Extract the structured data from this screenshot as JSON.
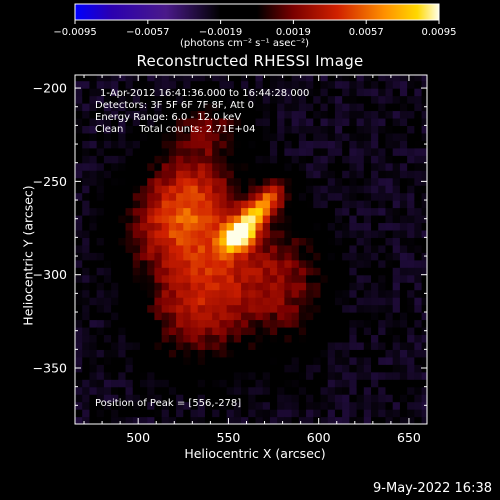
{
  "chart_data": {
    "type": "heatmap",
    "title": "Reconstructed RHESSI Image",
    "xlabel": "Heliocentric X (arcsec)",
    "ylabel": "Heliocentric Y (arcsec)",
    "xlim": [
      465,
      660
    ],
    "ylim": [
      -380,
      -193
    ],
    "x_ticks": [
      500,
      550,
      600,
      650
    ],
    "y_ticks": [
      -200,
      -250,
      -300,
      -350
    ],
    "annotations": [
      "1-Apr-2012 16:41:36.000 to 16:44:28.000",
      "Detectors: 3F 5F 6F 7F 8F, Att 0",
      "Energy Range: 6.0 - 12.0 keV",
      "Clean     Total counts: 2.71E+04"
    ],
    "peak_label": "Position of Peak = [556,-278]",
    "peak": {
      "x": 556,
      "y": -278
    },
    "colorbar": {
      "ticks": [
        "-0.0095",
        "-0.0057",
        "-0.0019",
        "0.0019",
        "0.0057",
        "0.0095"
      ],
      "min": -0.0095,
      "max": 0.0095,
      "units_label": "(photons cm⁻² s⁻¹ asec⁻²)"
    },
    "sources": [
      {
        "x": 556,
        "y": -278,
        "amp": 0.0095,
        "sx": 8,
        "sy": 5,
        "angle": 40
      },
      {
        "x": 570,
        "y": -262,
        "amp": 0.0075,
        "sx": 10,
        "sy": 5,
        "angle": 45
      },
      {
        "x": 530,
        "y": -258,
        "amp": 0.0052,
        "sx": 18,
        "sy": 22,
        "angle": 0
      },
      {
        "x": 550,
        "y": -300,
        "amp": 0.0045,
        "sx": 22,
        "sy": 28,
        "angle": 0
      },
      {
        "x": 525,
        "y": -320,
        "amp": 0.0032,
        "sx": 18,
        "sy": 20,
        "angle": 0
      },
      {
        "x": 510,
        "y": -275,
        "amp": 0.003,
        "sx": 18,
        "sy": 18,
        "angle": 0
      },
      {
        "x": 585,
        "y": -305,
        "amp": 0.0032,
        "sx": 15,
        "sy": 22,
        "angle": 0
      },
      {
        "x": 540,
        "y": -220,
        "amp": 0.0028,
        "sx": 14,
        "sy": 10,
        "angle": 0
      }
    ],
    "background": -0.0023,
    "colors": {
      "background": "#000000",
      "text": "#ffffff",
      "colormap": [
        "#0000ff",
        "#2b00b0",
        "#4a1a8a",
        "#5a2a80",
        "#000000",
        "#5a0012",
        "#a00000",
        "#e03000",
        "#ff8c00",
        "#ffd000",
        "#ffffe0"
      ]
    }
  },
  "footer": "9-May-2022 16:38"
}
